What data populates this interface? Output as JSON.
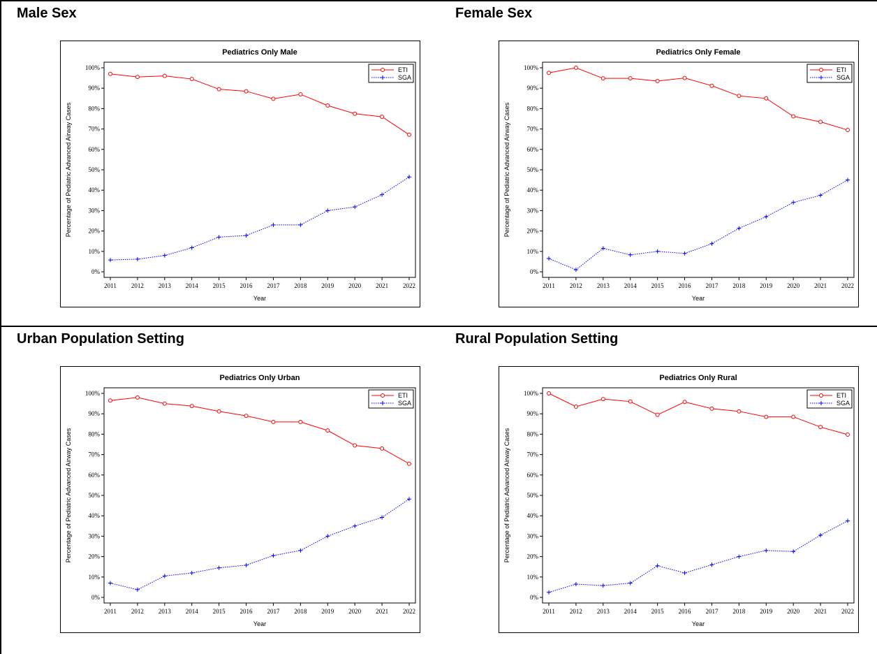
{
  "panels": [
    {
      "heading": "Male Sex"
    },
    {
      "heading": "Female Sex"
    },
    {
      "heading": "Urban Population Setting"
    },
    {
      "heading": "Rural Population Setting"
    }
  ],
  "colors": {
    "eti": "#ff0000",
    "sga": "#0000ff"
  },
  "chart_data": [
    {
      "type": "line",
      "title": "Pediatrics Only Male",
      "xlabel": "Year",
      "ylabel": "Percentage of Pediatric Advanced Airway Cases",
      "x": [
        2011,
        2012,
        2013,
        2014,
        2015,
        2016,
        2017,
        2018,
        2019,
        2020,
        2021,
        2022
      ],
      "ylim": [
        0,
        100
      ],
      "yticks": [
        "0%",
        "10%",
        "20%",
        "30%",
        "40%",
        "50%",
        "60%",
        "70%",
        "80%",
        "90%",
        "100%"
      ],
      "legend_position": "top-right",
      "series": [
        {
          "name": "ETI",
          "marker": "circle",
          "line": "solid",
          "values": [
            97.0,
            95.5,
            96.0,
            94.5,
            89.5,
            88.5,
            84.8,
            87.0,
            81.5,
            77.5,
            76.0,
            67.2
          ]
        },
        {
          "name": "SGA",
          "marker": "plus",
          "line": "dotted",
          "values": [
            5.8,
            6.2,
            8.0,
            11.8,
            17.0,
            17.8,
            23.0,
            23.0,
            30.0,
            31.8,
            37.8,
            46.5
          ]
        }
      ]
    },
    {
      "type": "line",
      "title": "Pediatrics Only Female",
      "xlabel": "Year",
      "ylabel": "Percentage of Pediatric Advanced Airway Cases",
      "x": [
        2011,
        2012,
        2013,
        2014,
        2015,
        2016,
        2017,
        2018,
        2019,
        2020,
        2021,
        2022
      ],
      "ylim": [
        0,
        100
      ],
      "yticks": [
        "0%",
        "10%",
        "20%",
        "30%",
        "40%",
        "50%",
        "60%",
        "70%",
        "80%",
        "90%",
        "100%"
      ],
      "legend_position": "top-right",
      "series": [
        {
          "name": "ETI",
          "marker": "circle",
          "line": "solid",
          "values": [
            97.5,
            100.0,
            94.8,
            94.8,
            93.5,
            95.0,
            91.2,
            86.2,
            85.0,
            76.2,
            73.5,
            69.5
          ]
        },
        {
          "name": "SGA",
          "marker": "plus",
          "line": "dotted",
          "values": [
            6.5,
            1.0,
            11.5,
            8.3,
            10.0,
            9.0,
            13.8,
            21.3,
            27.0,
            34.0,
            37.5,
            45.0
          ]
        }
      ]
    },
    {
      "type": "line",
      "title": "Pediatrics Only Urban",
      "xlabel": "Year",
      "ylabel": "Percentage of Pediatric Advanced Airway Cases",
      "x": [
        2011,
        2012,
        2013,
        2014,
        2015,
        2016,
        2017,
        2018,
        2019,
        2020,
        2021,
        2022
      ],
      "ylim": [
        0,
        100
      ],
      "yticks": [
        "0%",
        "10%",
        "20%",
        "30%",
        "40%",
        "50%",
        "60%",
        "70%",
        "80%",
        "90%",
        "100%"
      ],
      "legend_position": "top-right",
      "series": [
        {
          "name": "ETI",
          "marker": "circle",
          "line": "solid",
          "values": [
            96.5,
            98.0,
            95.0,
            93.8,
            91.2,
            89.0,
            86.0,
            86.0,
            81.8,
            74.5,
            73.0,
            65.5
          ]
        },
        {
          "name": "SGA",
          "marker": "plus",
          "line": "dotted",
          "values": [
            7.0,
            3.8,
            10.5,
            12.0,
            14.5,
            15.8,
            20.5,
            23.0,
            30.0,
            35.0,
            39.2,
            48.2
          ]
        }
      ]
    },
    {
      "type": "line",
      "title": "Pediatrics Only Rural",
      "xlabel": "Year",
      "ylabel": "Percentage of Pediatric Advanced Airway Cases",
      "x": [
        2011,
        2012,
        2013,
        2014,
        2015,
        2016,
        2017,
        2018,
        2019,
        2020,
        2021,
        2022
      ],
      "ylim": [
        0,
        100
      ],
      "yticks": [
        "0%",
        "10%",
        "20%",
        "30%",
        "40%",
        "50%",
        "60%",
        "70%",
        "80%",
        "90%",
        "100%"
      ],
      "legend_position": "top-right",
      "series": [
        {
          "name": "ETI",
          "marker": "circle",
          "line": "solid",
          "values": [
            100.0,
            93.5,
            97.2,
            96.0,
            89.5,
            95.8,
            92.5,
            91.2,
            88.5,
            88.5,
            83.5,
            79.8
          ]
        },
        {
          "name": "SGA",
          "marker": "plus",
          "line": "dotted",
          "values": [
            2.5,
            6.5,
            5.8,
            7.0,
            15.5,
            12.0,
            16.0,
            20.0,
            23.0,
            22.5,
            30.5,
            37.5
          ]
        }
      ]
    }
  ]
}
